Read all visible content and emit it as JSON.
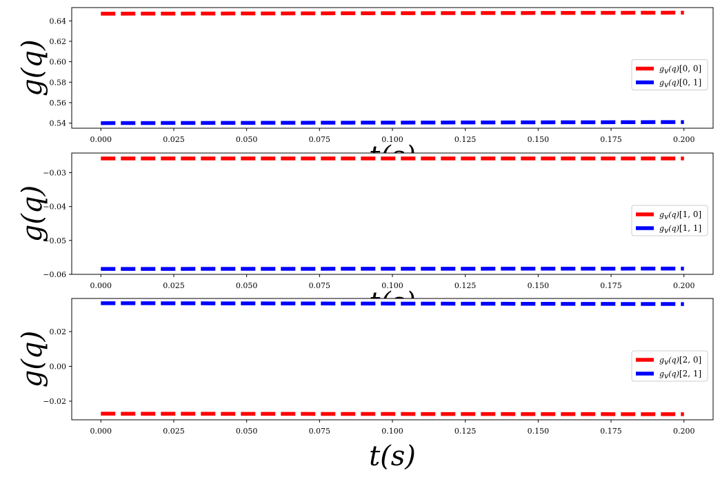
{
  "chart_data": [
    {
      "type": "line",
      "xlabel": "t(s)",
      "ylabel": "g(q)",
      "xlim": [
        -0.01,
        0.21
      ],
      "ylim": [
        0.535,
        0.653
      ],
      "x_ticks": [
        0.0,
        0.025,
        0.05,
        0.075,
        0.1,
        0.125,
        0.15,
        0.175,
        0.2
      ],
      "x_tick_labels": [
        "0.000",
        "0.025",
        "0.050",
        "0.075",
        "0.100",
        "0.125",
        "0.150",
        "0.175",
        "0.200"
      ],
      "y_ticks": [
        0.54,
        0.56,
        0.58,
        0.6,
        0.62,
        0.64
      ],
      "y_tick_labels": [
        "0.54",
        "0.56",
        "0.58",
        "0.60",
        "0.62",
        "0.64"
      ],
      "legend_position": "center-right",
      "x": [
        0.0,
        0.2
      ],
      "series": [
        {
          "name": "[0, 0]",
          "color": "#ff0000",
          "style": "dashed",
          "values": [
            0.647,
            0.648
          ]
        },
        {
          "name": "[0, 1]",
          "color": "#0000ff",
          "style": "dashed",
          "values": [
            0.54,
            0.541
          ]
        }
      ]
    },
    {
      "type": "line",
      "xlabel": "t(s)",
      "ylabel": "g(q)",
      "xlim": [
        -0.01,
        0.21
      ],
      "ylim": [
        -0.06,
        -0.0242
      ],
      "x_ticks": [
        0.0,
        0.025,
        0.05,
        0.075,
        0.1,
        0.125,
        0.15,
        0.175,
        0.2
      ],
      "x_tick_labels": [
        "0.000",
        "0.025",
        "0.050",
        "0.075",
        "0.100",
        "0.125",
        "0.150",
        "0.175",
        "0.200"
      ],
      "y_ticks": [
        -0.06,
        -0.05,
        -0.04,
        -0.03
      ],
      "y_tick_labels": [
        "−0.06",
        "−0.05",
        "−0.04",
        "−0.03"
      ],
      "legend_position": "center-right",
      "x": [
        0.0,
        0.2
      ],
      "series": [
        {
          "name": "[1, 0]",
          "color": "#ff0000",
          "style": "dashed",
          "values": [
            -0.0258,
            -0.0258
          ]
        },
        {
          "name": "[1, 1]",
          "color": "#0000ff",
          "style": "dashed",
          "values": [
            -0.0584,
            -0.0583
          ]
        }
      ]
    },
    {
      "type": "line",
      "xlabel": "t(s)",
      "ylabel": "g(q)",
      "xlim": [
        -0.01,
        0.21
      ],
      "ylim": [
        -0.0307,
        0.039
      ],
      "x_ticks": [
        0.0,
        0.025,
        0.05,
        0.075,
        0.1,
        0.125,
        0.15,
        0.175,
        0.2
      ],
      "x_tick_labels": [
        "0.000",
        "0.025",
        "0.050",
        "0.075",
        "0.100",
        "0.125",
        "0.150",
        "0.175",
        "0.200"
      ],
      "y_ticks": [
        -0.02,
        0.0,
        0.02
      ],
      "y_tick_labels": [
        "−0.02",
        "0.00",
        "0.02"
      ],
      "legend_position": "center-right",
      "x": [
        0.0,
        0.2
      ],
      "series": [
        {
          "name": "[2, 0]",
          "color": "#ff0000",
          "style": "dashed",
          "values": [
            -0.0272,
            -0.0275
          ]
        },
        {
          "name": "[2, 1]",
          "color": "#0000ff",
          "style": "dashed",
          "values": [
            0.0363,
            0.0358
          ]
        }
      ]
    }
  ],
  "legend_prefix": "g",
  "legend_prefix_sub": "v",
  "legend_prefix_arg": "(q)"
}
